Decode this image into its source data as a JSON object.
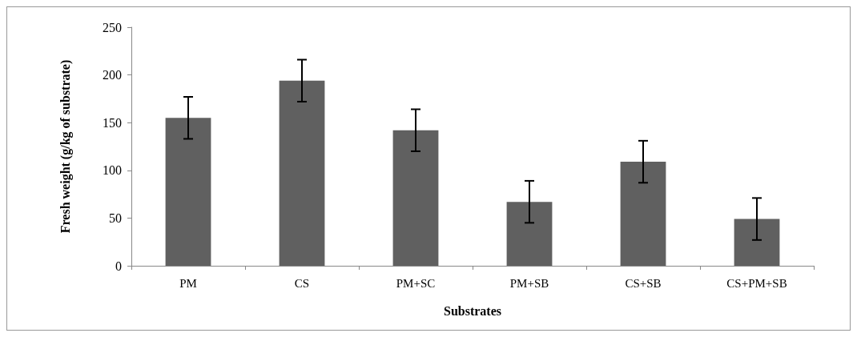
{
  "chart_data": {
    "type": "bar",
    "xlabel": "Substrates",
    "ylabel": "Fresh weight (g/kg of substrate)",
    "categories": [
      "PM",
      "CS",
      "PM+SC",
      "PM+SB",
      "CS+SB",
      "CS+PM+SB"
    ],
    "values": [
      155,
      194,
      142,
      67,
      109,
      49
    ],
    "errors": [
      22,
      22,
      22,
      22,
      22,
      22
    ],
    "color": "#606060",
    "ylim": [
      0,
      250
    ],
    "yticks": [
      0,
      50,
      100,
      150,
      200,
      250
    ],
    "grid": false
  }
}
